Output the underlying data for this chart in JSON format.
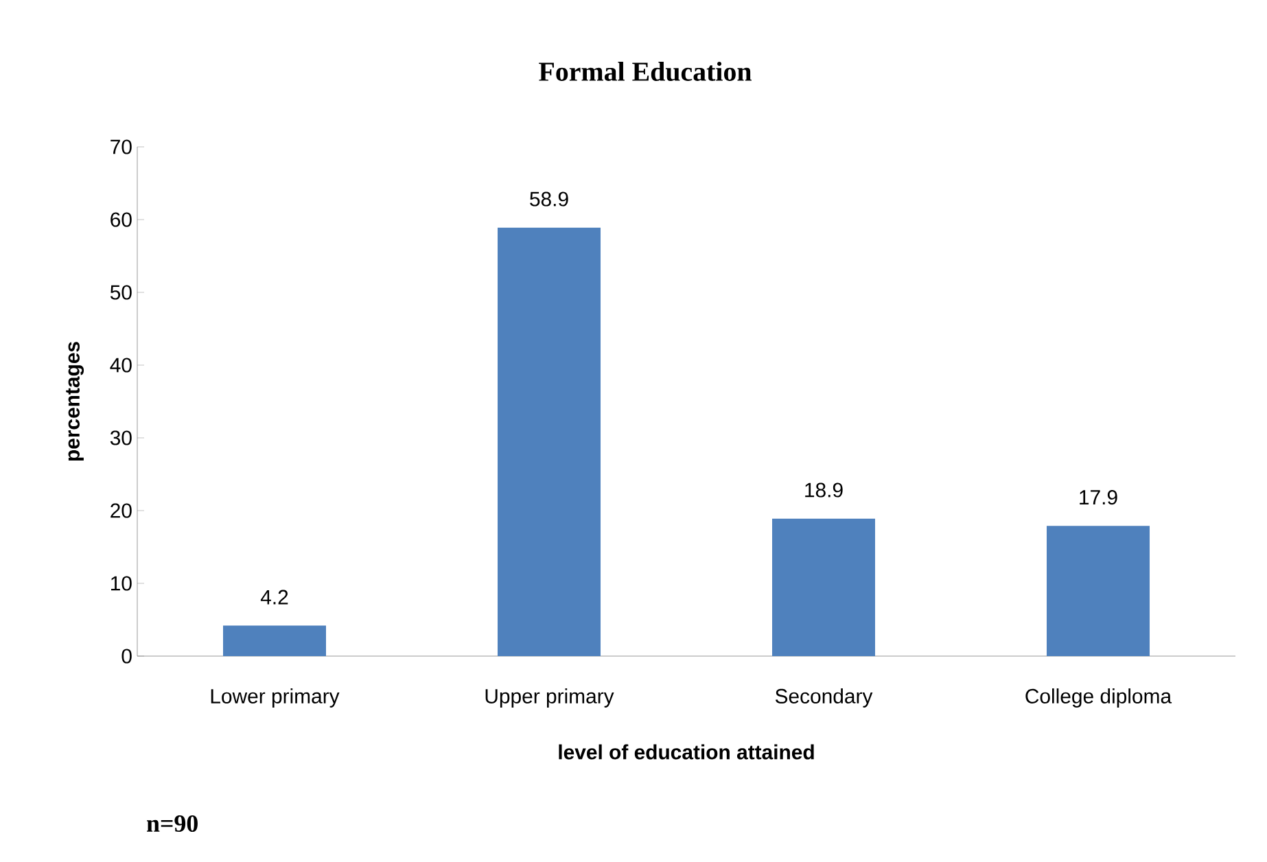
{
  "chart_data": {
    "type": "bar",
    "title": "Formal Education",
    "xlabel": "level of education attained",
    "ylabel": "percentages",
    "categories": [
      "Lower primary",
      "Upper primary",
      "Secondary",
      "College diploma"
    ],
    "values": [
      4.2,
      58.9,
      18.9,
      17.9
    ],
    "color": "#4f81bd",
    "data_labels": true,
    "ylim": [
      0,
      70
    ],
    "yticks": [
      0,
      10,
      20,
      30,
      40,
      50,
      60,
      70
    ],
    "annotations": [
      "n=90"
    ]
  }
}
